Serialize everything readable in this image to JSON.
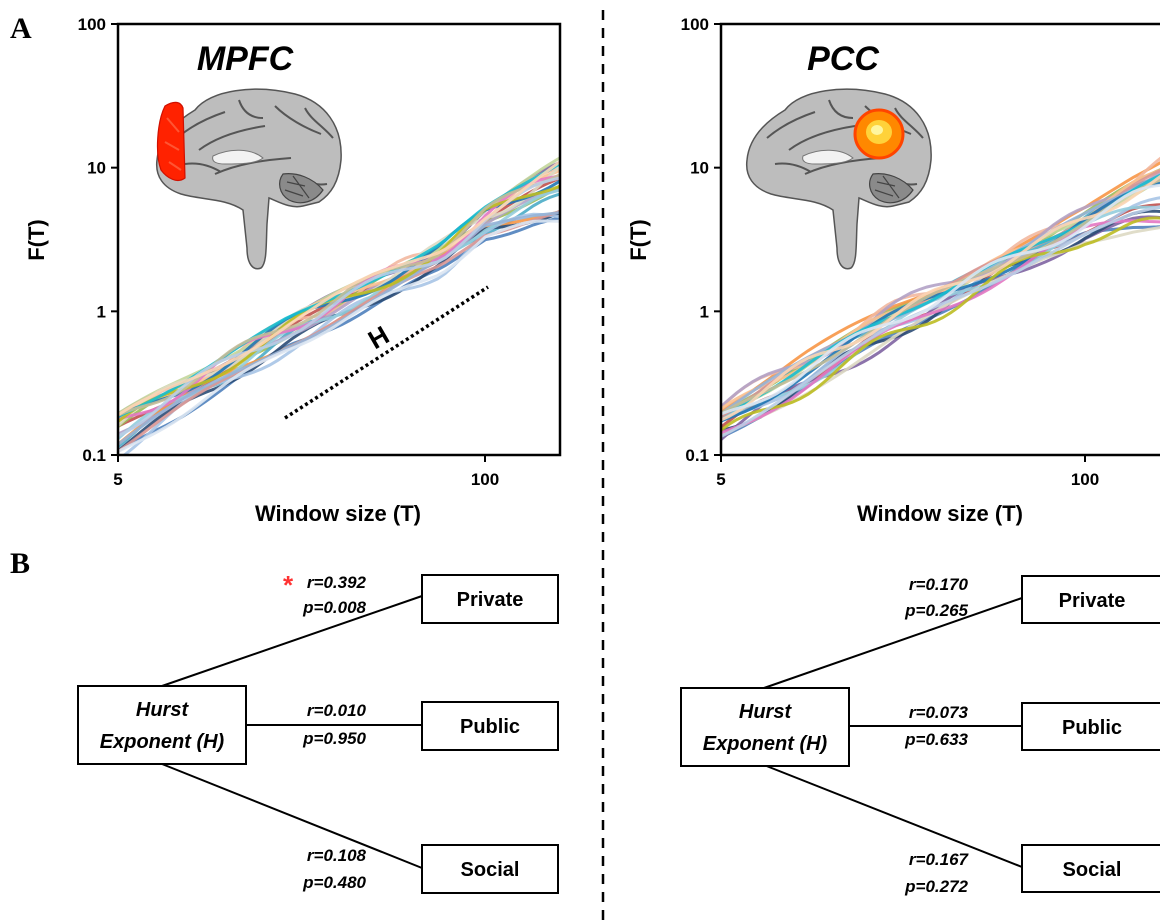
{
  "figure": {
    "panel_a_label": "A",
    "panel_b_label": "B",
    "colors": {
      "curves": [
        "#4f81bd",
        "#c0504d",
        "#9bbb59",
        "#8064a2",
        "#4bacc6",
        "#f79646",
        "#2c4d75",
        "#a7c4e5",
        "#f2b8a0",
        "#c3d69b",
        "#b3a2c7",
        "#93cddd",
        "#fac090",
        "#d99694",
        "#95b3d7",
        "#ddd9c3",
        "#1f77b4",
        "#e377c2",
        "#bcbd22",
        "#17becf",
        "#c4bd97",
        "#b9cde5",
        "#fcd5b4",
        "#dce6f2"
      ],
      "brain_highlight_mpfc": "#ff2200",
      "brain_highlight_pcc": "#ff8800",
      "asterisk": "#ff3333"
    }
  },
  "chart_data": [
    {
      "type": "line",
      "region_title": "MPFC",
      "xlabel": "Window size (T)",
      "ylabel": "F(T)",
      "x_scale": "log",
      "y_scale": "log",
      "xlim": [
        5,
        250
      ],
      "ylim": [
        0.1,
        100
      ],
      "x_ticks": [
        5,
        100
      ],
      "y_ticks": [
        0.1,
        1,
        10,
        100
      ],
      "x_tick_labels": [
        "5",
        "100"
      ],
      "y_tick_labels": [
        "0.1",
        "1",
        "10",
        "100"
      ],
      "annotation": "H",
      "n_series": 24,
      "series_band": {
        "x": [
          5,
          10,
          20,
          40,
          70,
          100,
          150,
          250
        ],
        "y_low": [
          0.1,
          0.24,
          0.55,
          1.1,
          1.9,
          3.3,
          4.0,
          4.5
        ],
        "y_high": [
          0.21,
          0.45,
          0.95,
          1.9,
          3.2,
          5.5,
          10.0,
          22.0
        ]
      }
    },
    {
      "type": "line",
      "region_title": "PCC",
      "xlabel": "Window size (T)",
      "ylabel": "F(T)",
      "x_scale": "log",
      "y_scale": "log",
      "xlim": [
        5,
        250
      ],
      "ylim": [
        0.1,
        100
      ],
      "x_ticks": [
        5,
        100
      ],
      "y_ticks": [
        0.1,
        1,
        10,
        100
      ],
      "x_tick_labels": [
        "5",
        "100"
      ],
      "y_tick_labels": [
        "0.1",
        "1",
        "10",
        "100"
      ],
      "n_series": 24,
      "series_band": {
        "x": [
          5,
          10,
          20,
          40,
          70,
          100,
          150,
          250
        ],
        "y_low": [
          0.13,
          0.28,
          0.62,
          1.3,
          2.4,
          3.2,
          3.6,
          3.8
        ],
        "y_high": [
          0.22,
          0.5,
          1.05,
          2.0,
          3.3,
          5.0,
          9.0,
          17.0
        ]
      }
    }
  ],
  "diagrams": [
    {
      "hurst_line1": "Hurst",
      "hurst_line2": "Exponent (H)",
      "private_label": "Private",
      "public_label": "Public",
      "social_label": "Social",
      "asterisk": "*",
      "private_r": "r=0.392",
      "private_p": "p=0.008",
      "public_r": "r=0.010",
      "public_p": "p=0.950",
      "social_r": "r=0.108",
      "social_p": "p=0.480"
    },
    {
      "hurst_line1": "Hurst",
      "hurst_line2": "Exponent (H)",
      "private_label": "Private",
      "public_label": "Public",
      "social_label": "Social",
      "private_r": "r=0.170",
      "private_p": "p=0.265",
      "public_r": "r=0.073",
      "public_p": "p=0.633",
      "social_r": "r=0.167",
      "social_p": "p=0.272"
    }
  ]
}
